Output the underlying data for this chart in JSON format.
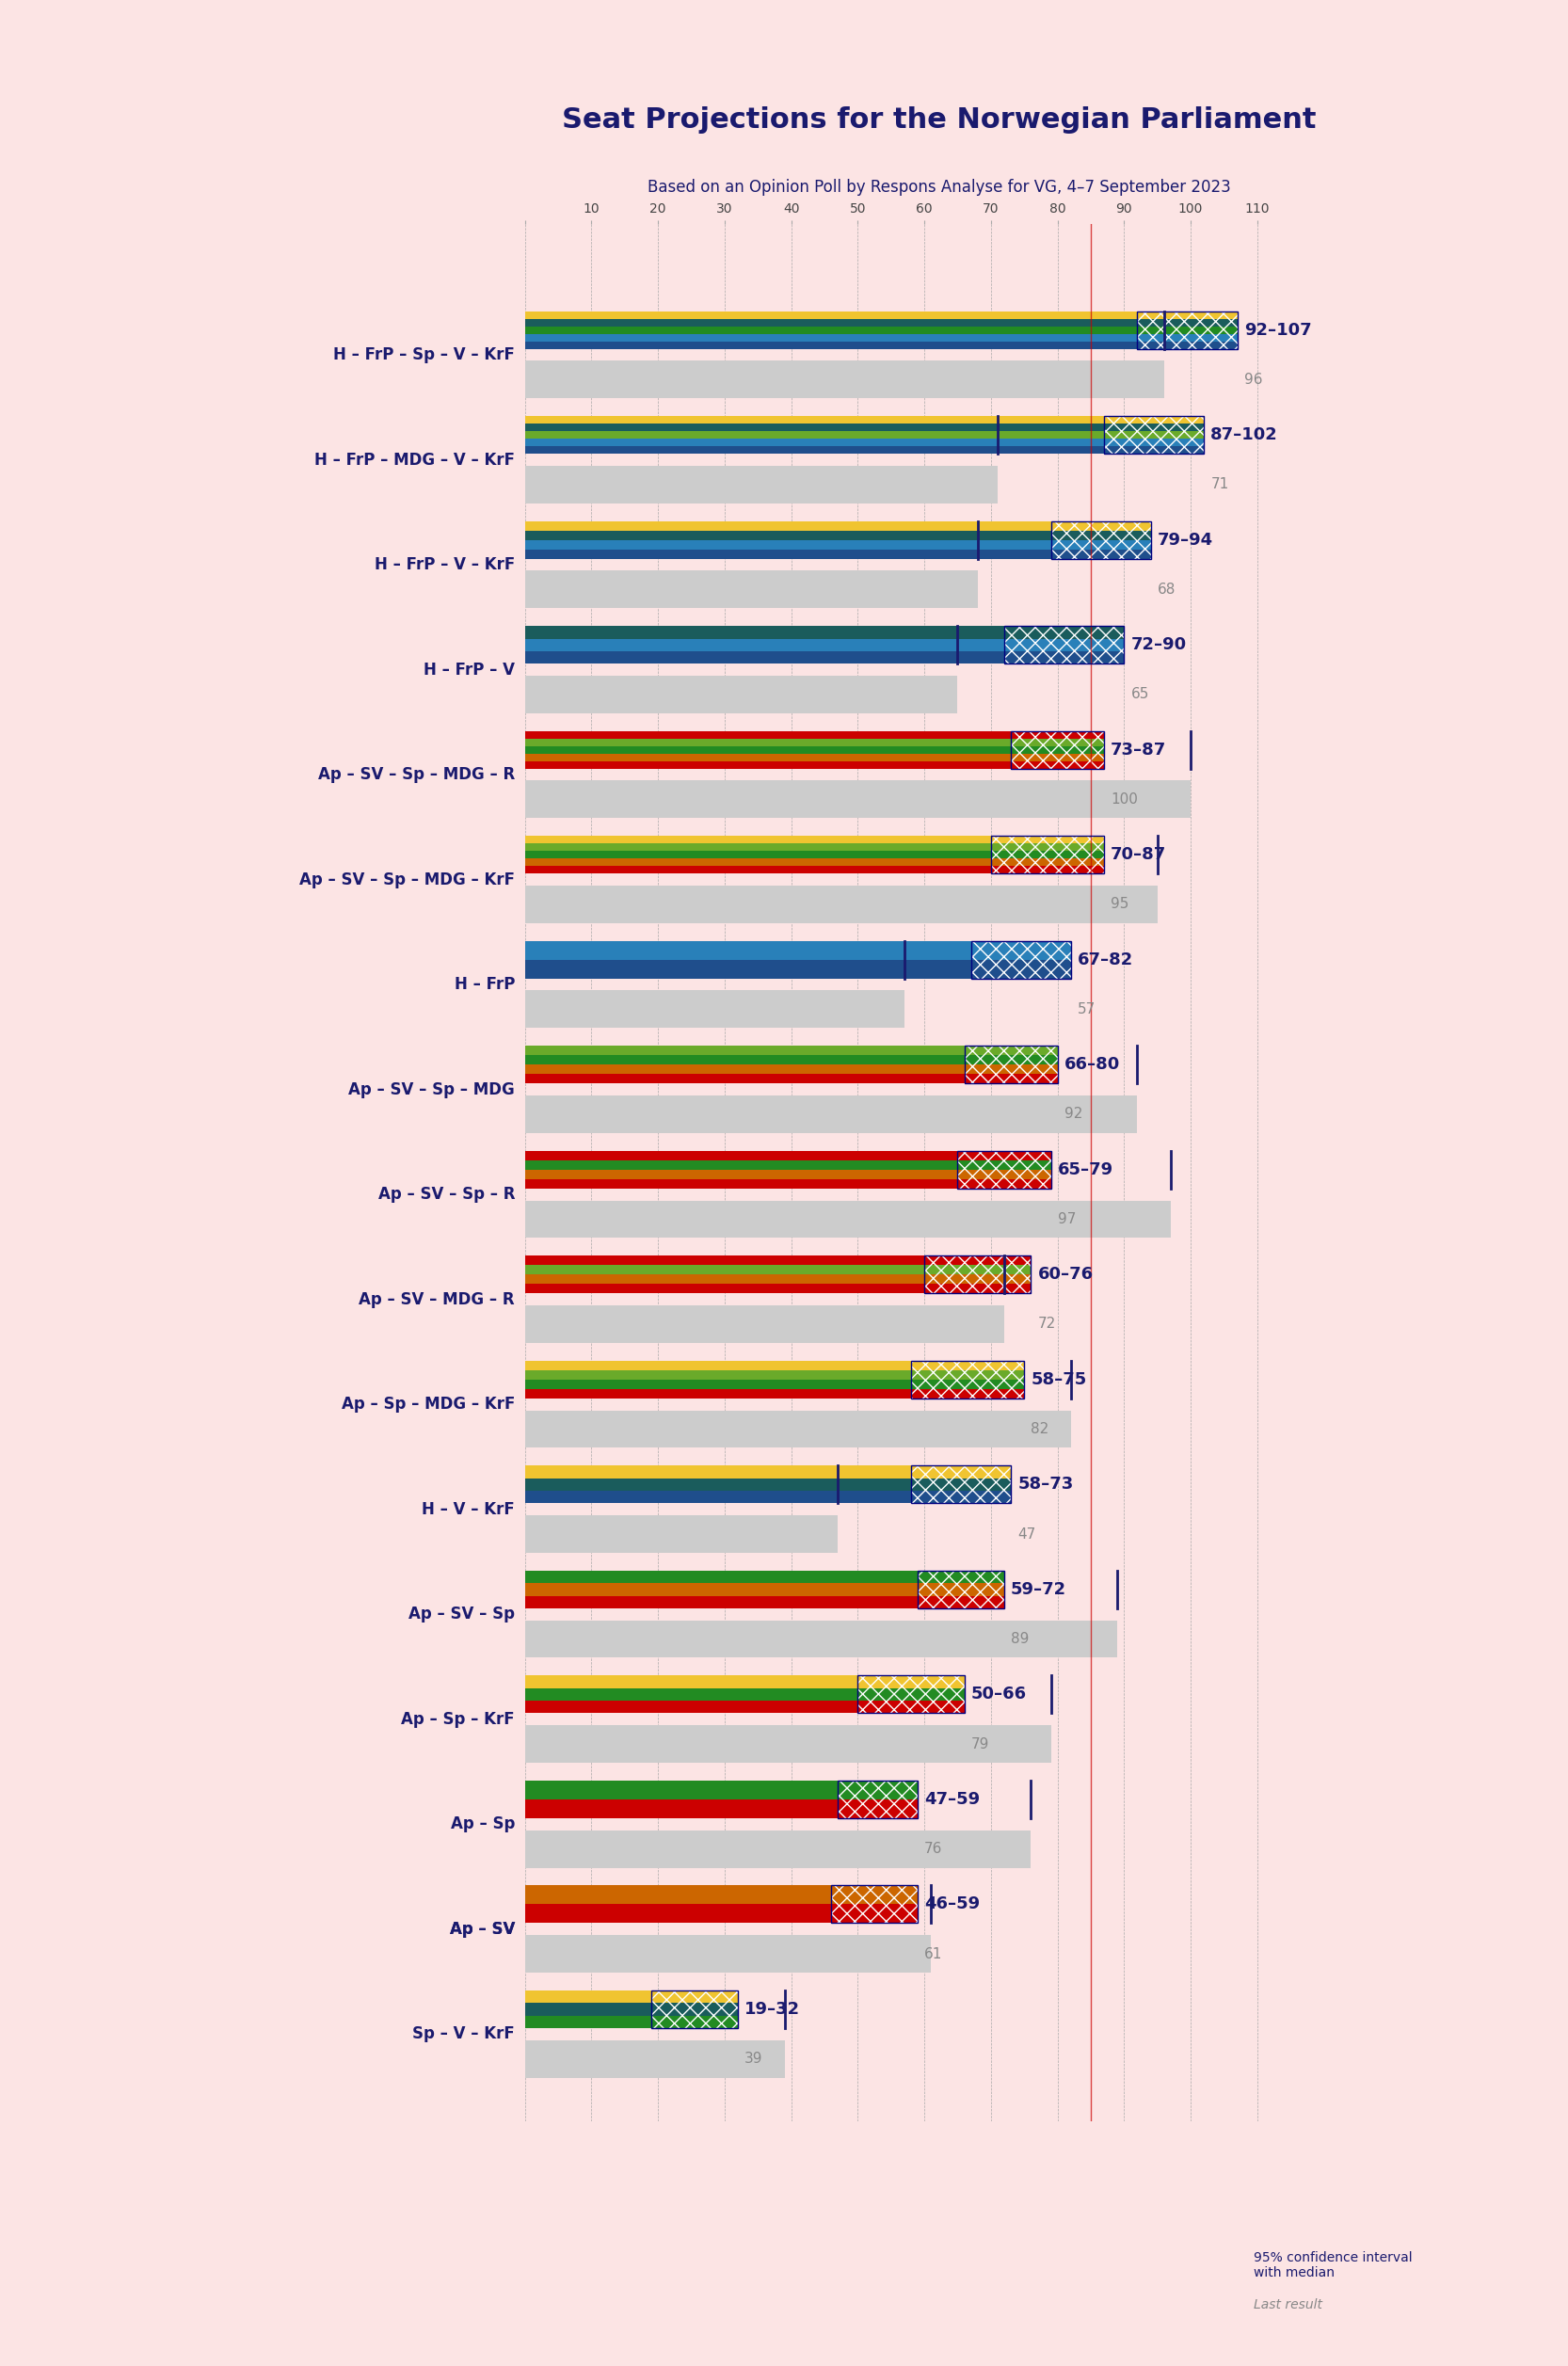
{
  "title": "Seat Projections for the Norwegian Parliament",
  "subtitle": "Based on an Opinion Poll by Respons Analyse for VG, 4–7 September 2023",
  "background_color": "#fce4e4",
  "title_color": "#1a1a6e",
  "subtitle_color": "#1a1a6e",
  "majority_line": 85,
  "x_max": 110,
  "coalitions": [
    {
      "label": "H – FrP – Sp – V – KrF",
      "ci_low": 92,
      "ci_high": 107,
      "median": 96,
      "last": 96,
      "colors": [
        "#1a5276",
        "#2874a6",
        "#1a5276",
        "#228b22",
        "#f0c430"
      ],
      "underline": false
    },
    {
      "label": "H – FrP – MDG – V – KrF",
      "ci_low": 87,
      "ci_high": 102,
      "median": 71,
      "last": 71,
      "colors": [
        "#1a5276",
        "#2874a6",
        "#228b22",
        "#6aaa2a",
        "#f0c430"
      ],
      "underline": false
    },
    {
      "label": "H – FrP – V – KrF",
      "ci_low": 79,
      "ci_high": 94,
      "median": 68,
      "last": 68,
      "colors": [
        "#1a5276",
        "#2874a6",
        "#1a5276",
        "#f0c430"
      ],
      "underline": false
    },
    {
      "label": "H – FrP – V",
      "ci_low": 72,
      "ci_high": 90,
      "median": 65,
      "last": 65,
      "colors": [
        "#1a5276",
        "#2874a6",
        "#1a5276"
      ],
      "underline": false
    },
    {
      "label": "Ap – SV – Sp – MDG – R",
      "ci_low": 73,
      "ci_high": 87,
      "median": 100,
      "last": 100,
      "colors": [
        "#cc0000",
        "#cc6600",
        "#228b22",
        "#6aaa2a",
        "#cc0000"
      ],
      "underline": false
    },
    {
      "label": "Ap – SV – Sp – MDG – KrF",
      "ci_low": 70,
      "ci_high": 87,
      "median": 95,
      "last": 95,
      "colors": [
        "#cc0000",
        "#cc6600",
        "#228b22",
        "#6aaa2a",
        "#f0c430"
      ],
      "underline": false
    },
    {
      "label": "H – FrP",
      "ci_low": 67,
      "ci_high": 82,
      "median": 57,
      "last": 57,
      "colors": [
        "#1a5276",
        "#2874a6"
      ],
      "underline": false
    },
    {
      "label": "Ap – SV – Sp – MDG",
      "ci_low": 66,
      "ci_high": 80,
      "median": 92,
      "last": 92,
      "colors": [
        "#cc0000",
        "#cc6600",
        "#228b22",
        "#6aaa2a"
      ],
      "underline": false
    },
    {
      "label": "Ap – SV – Sp – R",
      "ci_low": 65,
      "ci_high": 79,
      "median": 97,
      "last": 97,
      "colors": [
        "#cc0000",
        "#cc6600",
        "#228b22",
        "#cc0000"
      ],
      "underline": false
    },
    {
      "label": "Ap – SV – MDG – R",
      "ci_low": 60,
      "ci_high": 76,
      "median": 72,
      "last": 72,
      "colors": [
        "#cc0000",
        "#cc6600",
        "#6aaa2a",
        "#cc0000"
      ],
      "underline": false
    },
    {
      "label": "Ap – Sp – MDG – KrF",
      "ci_low": 58,
      "ci_high": 75,
      "median": 82,
      "last": 82,
      "colors": [
        "#cc0000",
        "#228b22",
        "#6aaa2a",
        "#f0c430"
      ],
      "underline": false
    },
    {
      "label": "H – V – KrF",
      "ci_low": 58,
      "ci_high": 73,
      "median": 47,
      "last": 47,
      "colors": [
        "#1a5276",
        "#1a5276",
        "#f0c430"
      ],
      "underline": false
    },
    {
      "label": "Ap – SV – Sp",
      "ci_low": 59,
      "ci_high": 72,
      "median": 89,
      "last": 89,
      "colors": [
        "#cc0000",
        "#cc6600",
        "#228b22"
      ],
      "underline": false
    },
    {
      "label": "Ap – Sp – KrF",
      "ci_low": 50,
      "ci_high": 66,
      "median": 79,
      "last": 79,
      "colors": [
        "#cc0000",
        "#228b22",
        "#f0c430"
      ],
      "underline": false
    },
    {
      "label": "Ap – Sp",
      "ci_low": 47,
      "ci_high": 59,
      "median": 76,
      "last": 76,
      "colors": [
        "#cc0000",
        "#228b22"
      ],
      "underline": false
    },
    {
      "label": "Ap – SV",
      "ci_low": 46,
      "ci_high": 59,
      "median": 61,
      "last": 61,
      "colors": [
        "#cc0000",
        "#cc6600"
      ],
      "underline": true
    },
    {
      "label": "Sp – V – KrF",
      "ci_low": 19,
      "ci_high": 32,
      "median": 39,
      "last": 39,
      "colors": [
        "#228b22",
        "#1a5276",
        "#f0c430"
      ],
      "underline": false
    }
  ],
  "legend": {
    "ci_label": "95% confidence interval\nwith median",
    "last_label": "Last result"
  }
}
